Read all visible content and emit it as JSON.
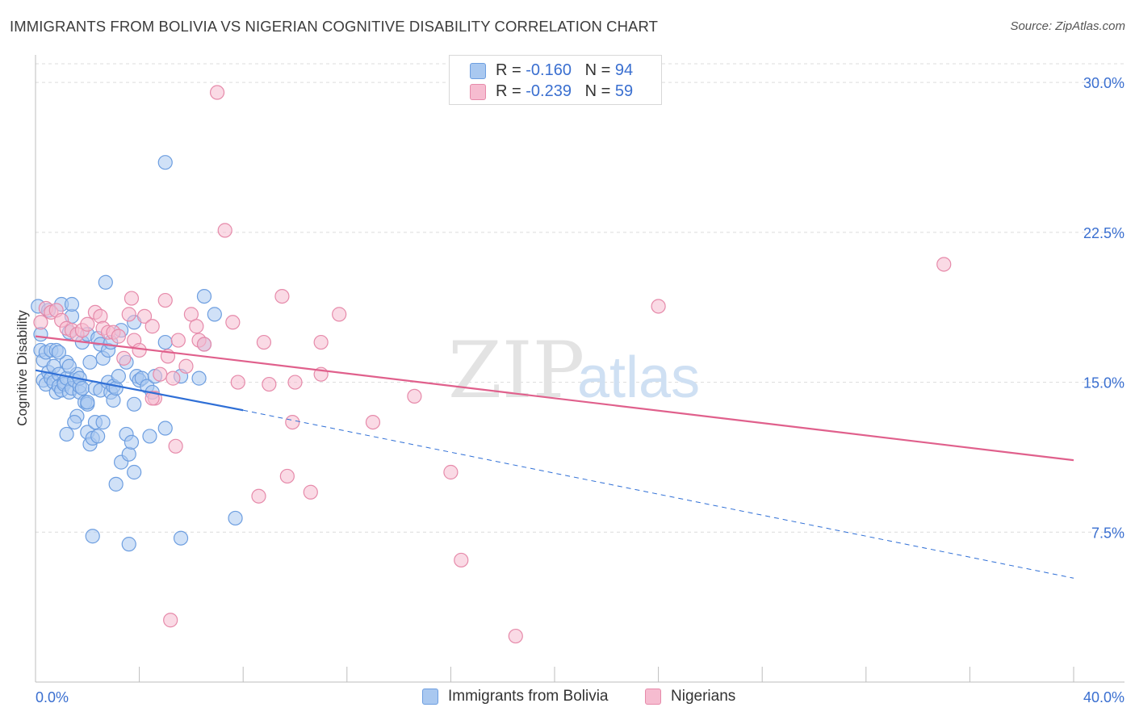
{
  "title": "IMMIGRANTS FROM BOLIVIA VS NIGERIAN COGNITIVE DISABILITY CORRELATION CHART",
  "source": "Source: ZipAtlas.com",
  "watermark": {
    "zip": "ZIP",
    "atlas": "atlas"
  },
  "legend_top": {
    "rows": [
      {
        "r_label": "R = ",
        "r_value": "-0.160",
        "n_label": "N = ",
        "n_value": "94"
      },
      {
        "r_label": "R = ",
        "r_value": "-0.239",
        "n_label": "N = ",
        "n_value": "59"
      }
    ]
  },
  "legend_bottom": {
    "series1": "Immigrants from Bolivia",
    "series2": "Nigerians"
  },
  "colors": {
    "bolivia_fill": "#a9c8f0",
    "bolivia_stroke": "#6d9ee0",
    "bolivia_line": "#2f6fd6",
    "nigeria_fill": "#f6bcd0",
    "nigeria_stroke": "#e68aaa",
    "nigeria_line": "#e0608c",
    "axis_label": "#3a6fd0",
    "grid": "#dcdcdc"
  },
  "chart_data": {
    "type": "scatter",
    "title": "IMMIGRANTS FROM BOLIVIA VS NIGERIAN COGNITIVE DISABILITY CORRELATION CHART",
    "xlabel": "",
    "ylabel": "Cognitive Disability",
    "xlim": [
      0,
      40
    ],
    "ylim": [
      0,
      31.5
    ],
    "x_tick_labels": [
      "0.0%",
      "40.0%"
    ],
    "y_ticks": [
      7.5,
      15.0,
      22.5,
      30.0
    ],
    "y_tick_labels": [
      "7.5%",
      "15.0%",
      "22.5%",
      "30.0%"
    ],
    "grid": true,
    "legend_position": "top-center",
    "series": [
      {
        "name": "Immigrants from Bolivia",
        "r": -0.16,
        "n": 94,
        "trend": {
          "x0": 0,
          "y0": 15.6,
          "x1": 8.0,
          "y1": 13.6,
          "dashed_to_x": 40,
          "dashed_to_y": 5.2
        },
        "points": [
          [
            0.1,
            18.8
          ],
          [
            0.2,
            17.4
          ],
          [
            0.2,
            16.6
          ],
          [
            0.3,
            16.1
          ],
          [
            0.3,
            15.1
          ],
          [
            0.4,
            16.5
          ],
          [
            0.4,
            14.9
          ],
          [
            0.5,
            15.5
          ],
          [
            0.5,
            18.6
          ],
          [
            0.6,
            16.6
          ],
          [
            0.6,
            15.2
          ],
          [
            0.7,
            15.0
          ],
          [
            0.7,
            15.8
          ],
          [
            0.8,
            14.5
          ],
          [
            0.8,
            16.6
          ],
          [
            0.9,
            15.4
          ],
          [
            0.9,
            14.8
          ],
          [
            1.0,
            18.9
          ],
          [
            1.0,
            14.6
          ],
          [
            1.1,
            15.0
          ],
          [
            1.1,
            14.9
          ],
          [
            1.2,
            16.0
          ],
          [
            1.2,
            12.4
          ],
          [
            1.2,
            15.2
          ],
          [
            1.3,
            17.5
          ],
          [
            1.3,
            14.5
          ],
          [
            1.4,
            18.3
          ],
          [
            1.4,
            14.7
          ],
          [
            1.4,
            18.9
          ],
          [
            1.5,
            15.1
          ],
          [
            1.6,
            15.4
          ],
          [
            1.6,
            13.3
          ],
          [
            1.7,
            14.5
          ],
          [
            1.7,
            14.8
          ],
          [
            1.7,
            15.2
          ],
          [
            1.8,
            17.0
          ],
          [
            1.8,
            14.7
          ],
          [
            1.9,
            14.0
          ],
          [
            2.0,
            13.9
          ],
          [
            2.0,
            12.5
          ],
          [
            2.0,
            17.4
          ],
          [
            2.1,
            16.0
          ],
          [
            2.1,
            11.9
          ],
          [
            2.2,
            12.2
          ],
          [
            2.3,
            13.0
          ],
          [
            2.3,
            14.7
          ],
          [
            2.4,
            17.2
          ],
          [
            2.4,
            12.3
          ],
          [
            2.5,
            16.9
          ],
          [
            2.5,
            14.6
          ],
          [
            2.6,
            13.0
          ],
          [
            2.6,
            16.2
          ],
          [
            2.7,
            20.0
          ],
          [
            2.8,
            15.0
          ],
          [
            2.8,
            16.6
          ],
          [
            2.9,
            14.5
          ],
          [
            2.9,
            17.0
          ],
          [
            3.0,
            14.8
          ],
          [
            3.0,
            14.1
          ],
          [
            3.1,
            14.7
          ],
          [
            3.2,
            15.3
          ],
          [
            3.3,
            11.0
          ],
          [
            3.3,
            17.6
          ],
          [
            3.5,
            12.4
          ],
          [
            3.5,
            16.0
          ],
          [
            3.6,
            11.4
          ],
          [
            3.7,
            12.0
          ],
          [
            3.8,
            18.0
          ],
          [
            3.8,
            13.9
          ],
          [
            3.9,
            15.3
          ],
          [
            4.0,
            15.1
          ],
          [
            4.1,
            15.2
          ],
          [
            4.3,
            14.8
          ],
          [
            4.4,
            12.3
          ],
          [
            4.5,
            14.5
          ],
          [
            4.6,
            15.3
          ],
          [
            5.0,
            17.0
          ],
          [
            5.0,
            12.7
          ],
          [
            5.6,
            15.3
          ],
          [
            6.3,
            15.2
          ],
          [
            6.5,
            19.3
          ],
          [
            6.9,
            18.4
          ],
          [
            3.1,
            9.9
          ],
          [
            3.8,
            10.5
          ],
          [
            2.2,
            7.3
          ],
          [
            3.6,
            6.9
          ],
          [
            5.6,
            7.2
          ],
          [
            7.7,
            8.2
          ],
          [
            5.0,
            26.0
          ],
          [
            2.0,
            14.0
          ],
          [
            1.5,
            13.0
          ],
          [
            0.9,
            16.5
          ],
          [
            1.3,
            15.8
          ],
          [
            6.5,
            16.9
          ]
        ]
      },
      {
        "name": "Nigerians",
        "r": -0.239,
        "n": 59,
        "trend": {
          "x0": 0,
          "y0": 17.3,
          "x1": 40,
          "y1": 11.1
        },
        "points": [
          [
            0.2,
            18.0
          ],
          [
            0.4,
            18.7
          ],
          [
            0.6,
            18.5
          ],
          [
            0.8,
            18.6
          ],
          [
            1.0,
            18.1
          ],
          [
            1.2,
            17.7
          ],
          [
            1.4,
            17.6
          ],
          [
            1.6,
            17.4
          ],
          [
            1.8,
            17.6
          ],
          [
            2.0,
            17.9
          ],
          [
            2.3,
            18.5
          ],
          [
            2.5,
            18.3
          ],
          [
            2.6,
            17.7
          ],
          [
            2.8,
            17.5
          ],
          [
            3.0,
            17.5
          ],
          [
            3.2,
            17.3
          ],
          [
            3.4,
            16.2
          ],
          [
            3.6,
            18.4
          ],
          [
            3.7,
            19.2
          ],
          [
            3.8,
            17.1
          ],
          [
            4.0,
            16.6
          ],
          [
            4.2,
            18.3
          ],
          [
            4.5,
            17.8
          ],
          [
            4.8,
            15.4
          ],
          [
            5.0,
            19.1
          ],
          [
            5.1,
            16.3
          ],
          [
            5.3,
            15.2
          ],
          [
            5.5,
            17.1
          ],
          [
            5.8,
            15.8
          ],
          [
            6.0,
            18.4
          ],
          [
            6.2,
            17.8
          ],
          [
            6.3,
            17.1
          ],
          [
            6.5,
            16.9
          ],
          [
            7.3,
            22.6
          ],
          [
            7.6,
            18.0
          ],
          [
            7.8,
            15.0
          ],
          [
            8.8,
            17.0
          ],
          [
            9.0,
            14.9
          ],
          [
            9.5,
            19.3
          ],
          [
            10.0,
            15.0
          ],
          [
            11.0,
            15.4
          ],
          [
            11.7,
            18.4
          ],
          [
            11.0,
            17.0
          ],
          [
            9.9,
            13.0
          ],
          [
            14.6,
            14.3
          ],
          [
            13.0,
            13.0
          ],
          [
            24.0,
            18.8
          ],
          [
            35.0,
            20.9
          ],
          [
            4.6,
            14.2
          ],
          [
            4.5,
            14.2
          ],
          [
            5.4,
            11.8
          ],
          [
            8.6,
            9.3
          ],
          [
            9.7,
            10.3
          ],
          [
            10.6,
            9.5
          ],
          [
            16.0,
            10.5
          ],
          [
            16.4,
            6.1
          ],
          [
            5.2,
            3.1
          ],
          [
            18.5,
            2.3
          ],
          [
            7.0,
            29.5
          ]
        ]
      }
    ]
  }
}
